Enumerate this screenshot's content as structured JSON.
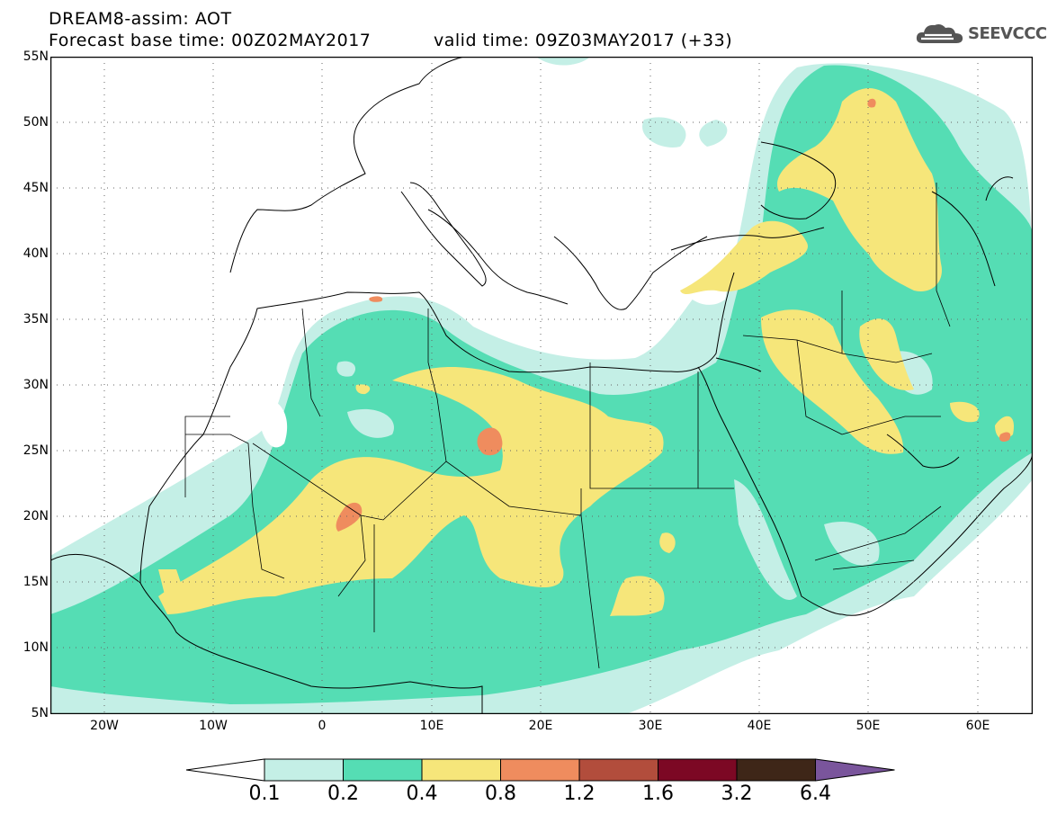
{
  "header": {
    "title_line1": "DREAM8-assim: AOT",
    "title_line2": "Forecast base time: 00Z02MAY2017",
    "valid_time": "valid time: 09Z03MAY2017 (+33)",
    "logo_text": "SEEVCCC"
  },
  "map": {
    "lat_labels": [
      "55N",
      "50N",
      "45N",
      "40N",
      "35N",
      "30N",
      "25N",
      "20N",
      "15N",
      "10N",
      "5N"
    ],
    "lon_labels": [
      "20W",
      "10W",
      "0",
      "10E",
      "20E",
      "30E",
      "40E",
      "50E",
      "60E"
    ],
    "lat_range": [
      5,
      55
    ],
    "lon_range": [
      -25,
      65
    ],
    "grid": true
  },
  "colorbar": {
    "labels": [
      "0.1",
      "0.2",
      "0.4",
      "0.8",
      "1.2",
      "1.6",
      "3.2",
      "6.4"
    ],
    "colors": [
      "#ffffff",
      "#c4efe6",
      "#55ddb4",
      "#f6e67a",
      "#ef8c5e",
      "#b24d3c",
      "#7c0824",
      "#3e2618",
      "#7a559c"
    ]
  }
}
